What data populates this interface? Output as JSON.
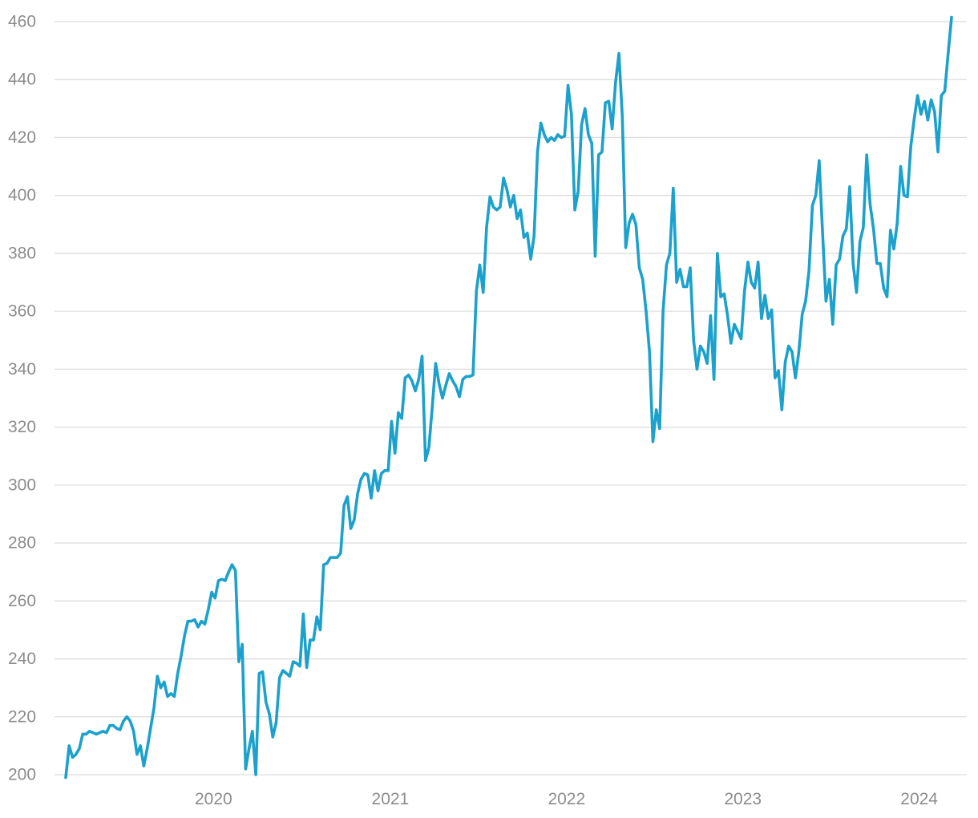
{
  "chart_data": {
    "type": "line",
    "title": "",
    "xlabel": "",
    "ylabel": "",
    "ylim": [
      200,
      460
    ],
    "y_ticks": [
      200,
      220,
      240,
      260,
      280,
      300,
      320,
      340,
      360,
      380,
      400,
      420,
      440,
      460
    ],
    "x_ticks": [
      "2020",
      "2021",
      "2022",
      "2023",
      "2024"
    ],
    "x_tick_dates": [
      "2020-01-01",
      "2021-01-01",
      "2022-01-01",
      "2023-01-01",
      "2024-01-01"
    ],
    "grid": "horizontal",
    "legend": "none",
    "color": "#1ca1cc",
    "x_start": "2019-03-01",
    "x_end": "2024-03-08",
    "series": [
      {
        "values": [
          199,
          210,
          206,
          207,
          209,
          214,
          214,
          215,
          214.5,
          214,
          214.5,
          215,
          214.5,
          217,
          217,
          216,
          215.5,
          218.5,
          220,
          218.5,
          215,
          207,
          210,
          203,
          209,
          216,
          223,
          234,
          230,
          232,
          227,
          228,
          227,
          235,
          241,
          248,
          253,
          253,
          253.5,
          251,
          253,
          252,
          257,
          263,
          261,
          267,
          267.5,
          267,
          270,
          272.5,
          270.5,
          239,
          245,
          202,
          209,
          215,
          200,
          235,
          235.5,
          225,
          221,
          213,
          218,
          233.5,
          236,
          235,
          234,
          239,
          238.5,
          237.5,
          255.5,
          237,
          246.5,
          246.5,
          254.5,
          250,
          272.5,
          273,
          275,
          275,
          275,
          276.5,
          293,
          296,
          285,
          288,
          297,
          302,
          304,
          303.5,
          295.5,
          305,
          298,
          304,
          305,
          305,
          322,
          311,
          325,
          323,
          337,
          338,
          336,
          332.5,
          336.5,
          344.5,
          308.5,
          313,
          327,
          342,
          335,
          330,
          334.5,
          338.5,
          336,
          334,
          330.5,
          336.5,
          337.5,
          337.5,
          338,
          367,
          376,
          366.5,
          389,
          399.5,
          396,
          395,
          396,
          406,
          402,
          396,
          400,
          392,
          395,
          385.5,
          387,
          378,
          386,
          415,
          425,
          421,
          418.5,
          420,
          419,
          421,
          420,
          420.5,
          438,
          428,
          395,
          401.5,
          424.5,
          430,
          421,
          418,
          379,
          414,
          415,
          432,
          432.5,
          423,
          439,
          449,
          427,
          382,
          390.5,
          393.5,
          390,
          375,
          371,
          360,
          346,
          315,
          326,
          319.5,
          360,
          376,
          380,
          402.5,
          370,
          374.5,
          368.5,
          368.5,
          375,
          350,
          340,
          348,
          346,
          342,
          358.5,
          336.5,
          380,
          365,
          366,
          358.5,
          349,
          355.5,
          353,
          350.5,
          367,
          377,
          370,
          368,
          377,
          357.5,
          365.5,
          357.5,
          360.5,
          337,
          339.5,
          326,
          342.5,
          348,
          346,
          337,
          346,
          359,
          363.5,
          374,
          396.5,
          400,
          412,
          387,
          363.5,
          371,
          355.5,
          376,
          378,
          386,
          388.5,
          403,
          376.5,
          366.5,
          384,
          389,
          414,
          397,
          388.5,
          376.5,
          376.5,
          368,
          365,
          388,
          381.5,
          390.5,
          410,
          400,
          399.5,
          417,
          426.5,
          434.5,
          428,
          432.5,
          426,
          433,
          429,
          415,
          434.5,
          436,
          449,
          461.5
        ]
      }
    ]
  }
}
